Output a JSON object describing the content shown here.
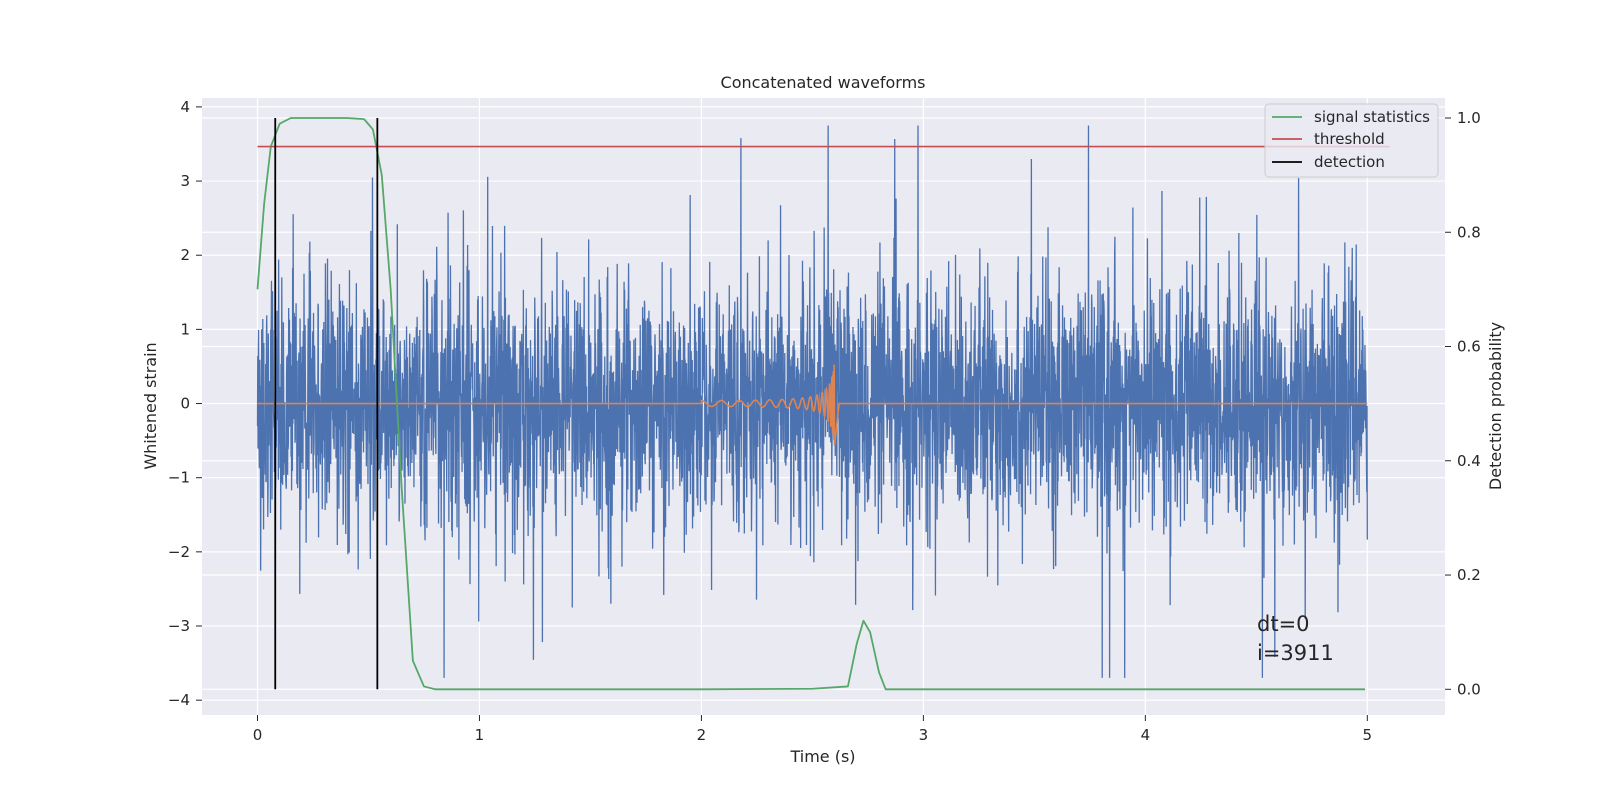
{
  "chart_data": {
    "type": "line",
    "title": "Concatenated waveforms",
    "xlabel": "Time (s)",
    "ylabel_left": "Whitened strain",
    "ylabel_right": "Detection probability",
    "xlim": [
      -0.25,
      5.35
    ],
    "ylim_left": [
      -4.2,
      4.12
    ],
    "ylim_right": [
      -0.045,
      1.035
    ],
    "xticks": [
      0,
      1,
      2,
      3,
      4,
      5
    ],
    "xtick_labels": [
      "0",
      "1",
      "2",
      "3",
      "4",
      "5"
    ],
    "yticks_left": [
      -4,
      -3,
      -2,
      -1,
      0,
      1,
      2,
      3,
      4
    ],
    "ytick_labels_left": [
      "−4",
      "−3",
      "−2",
      "−1",
      "0",
      "1",
      "2",
      "3",
      "4"
    ],
    "yticks_right": [
      0.0,
      0.2,
      0.4,
      0.6,
      0.8,
      1.0
    ],
    "ytick_labels_right": [
      "0.0",
      "0.2",
      "0.4",
      "0.6",
      "0.8",
      "1.0"
    ],
    "grid": true,
    "legend_position": "top-right",
    "series": [
      {
        "name": "",
        "axis": "left",
        "color": "#4c72b0",
        "kind": "whitened noise strain sampled over 0–5 s",
        "x_range": [
          0,
          5
        ],
        "typical_amplitude": 0.8,
        "max_value": 3.75,
        "min_value": -3.7
      },
      {
        "name": "",
        "axis": "left",
        "color": "#dd8452",
        "kind": "injected chirp waveform",
        "x": [
          0,
          2.0,
          2.6,
          2.62,
          5.0
        ],
        "y_envelope": [
          0,
          0.03,
          0.6,
          0,
          0
        ]
      },
      {
        "name": "signal statistics",
        "axis": "right",
        "color": "#55a868",
        "x": [
          0.0,
          0.03,
          0.06,
          0.1,
          0.15,
          0.2,
          0.3,
          0.4,
          0.48,
          0.52,
          0.56,
          0.6,
          0.65,
          0.7,
          0.75,
          0.8,
          1.0,
          2.0,
          2.5,
          2.66,
          2.7,
          2.73,
          2.76,
          2.8,
          2.83,
          3.0,
          4.0,
          4.99
        ],
        "y": [
          0.7,
          0.85,
          0.95,
          0.99,
          1.0,
          1.0,
          1.0,
          1.0,
          0.998,
          0.98,
          0.9,
          0.7,
          0.35,
          0.05,
          0.005,
          0.0,
          0.0,
          0.0,
          0.001,
          0.005,
          0.08,
          0.12,
          0.1,
          0.03,
          0.0,
          0.0,
          0.0,
          0.0
        ]
      },
      {
        "name": "threshold",
        "axis": "right",
        "color": "#c44e52",
        "x": [
          0,
          5.1
        ],
        "y": [
          0.95,
          0.95
        ]
      },
      {
        "name": "detection",
        "axis": "right",
        "color": "#000000",
        "kind": "vertical lines",
        "x": [
          0.08,
          0.54
        ],
        "y": [
          0.0,
          1.0
        ]
      }
    ],
    "annotations": [
      "dt=0",
      "i=3911"
    ]
  }
}
